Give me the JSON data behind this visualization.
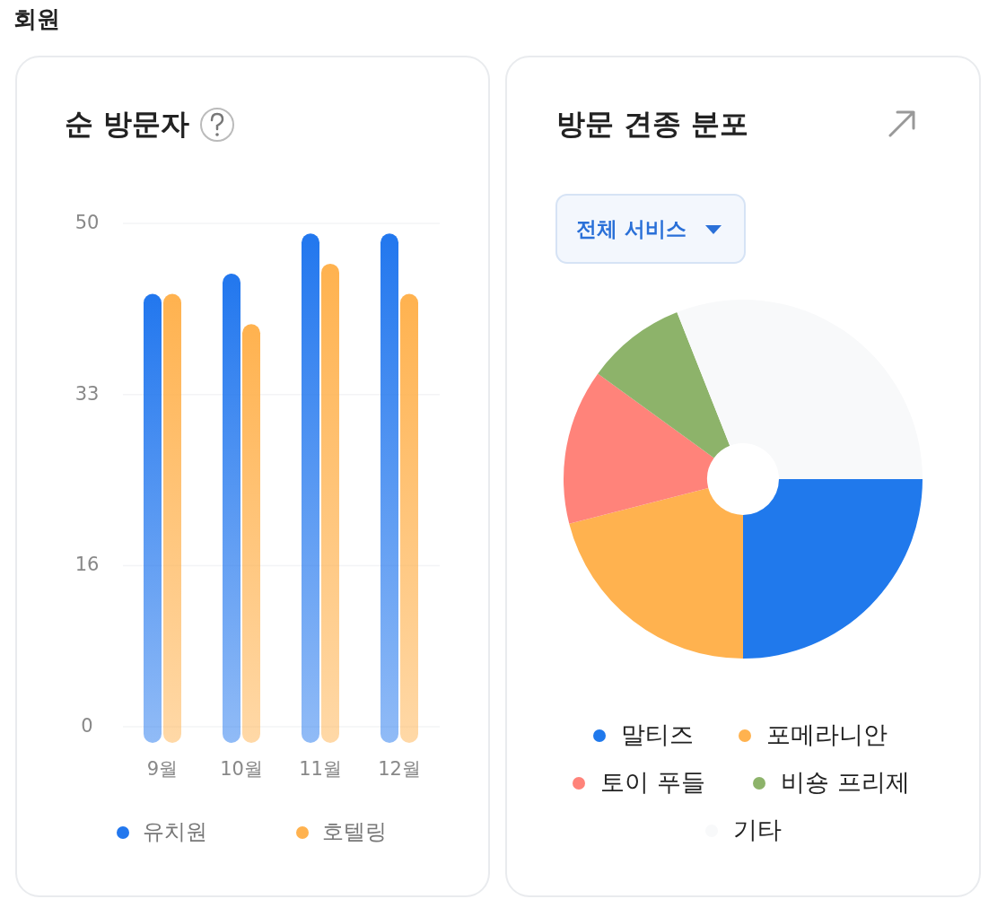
{
  "chart_data": [
    {
      "type": "other",
      "title": "회원"
    },
    {
      "type": "bar",
      "title": "순 방문자",
      "categories": [
        "9월",
        "10월",
        "11월",
        "12월"
      ],
      "series": [
        {
          "name": "유치원",
          "color": "#2277ee",
          "values": [
            43,
            45,
            49,
            49
          ]
        },
        {
          "name": "호텔링",
          "color": "#ffb24f",
          "values": [
            43,
            40,
            46,
            43
          ]
        }
      ],
      "ylim": [
        0,
        50
      ],
      "yticks": [
        0,
        16,
        33,
        50
      ],
      "grid": "y",
      "legend": "bottom"
    },
    {
      "type": "donut",
      "title": "방문 견종 분포",
      "categories": [
        "말티즈",
        "포메라니안",
        "토이 푸들",
        "비숑 프리제",
        "기타"
      ],
      "values": [
        25,
        21,
        14,
        9,
        31
      ],
      "colors": [
        "#2079ec",
        "#ffb24f",
        "#ff837a",
        "#8db36a",
        "#f8f9fa"
      ],
      "legend": "bottom",
      "annotations": [
        "전체 서비스"
      ]
    }
  ]
}
